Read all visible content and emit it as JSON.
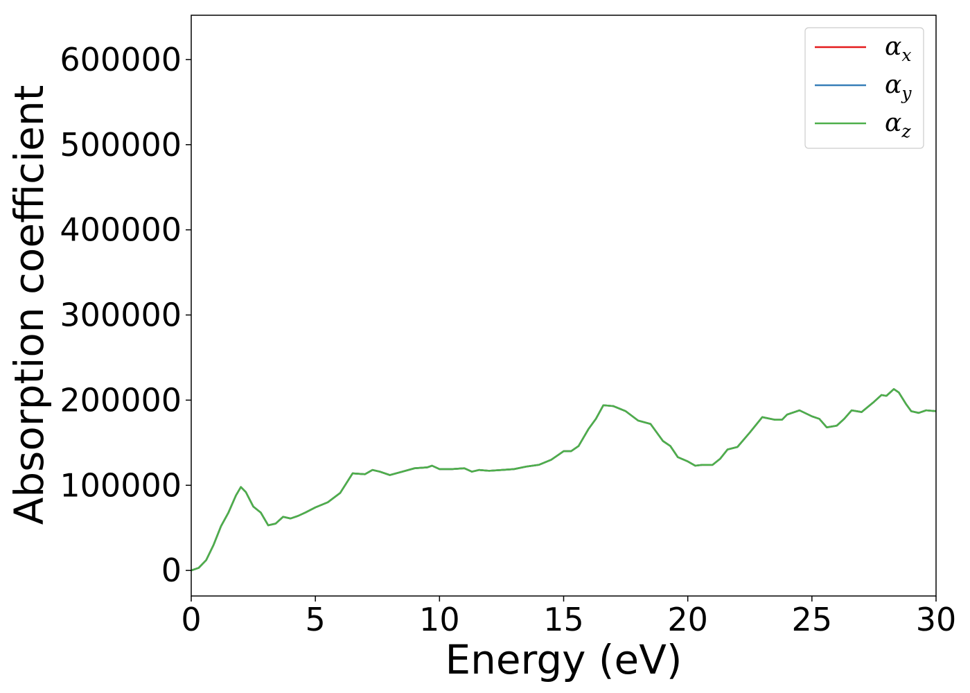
{
  "chart_data": {
    "type": "line",
    "title": "",
    "xlabel": "Energy (eV)",
    "ylabel": "Absorption coefficient",
    "xlim": [
      0,
      30
    ],
    "ylim": [
      -30000,
      652000
    ],
    "xticks": [
      0,
      5,
      10,
      15,
      20,
      25,
      30
    ],
    "yticks": [
      0,
      100000,
      200000,
      300000,
      400000,
      500000,
      600000
    ],
    "grid": false,
    "legend_position": "top-right",
    "x": [
      0,
      0.3,
      0.6,
      0.9,
      1.2,
      1.5,
      1.8,
      2.0,
      2.2,
      2.5,
      2.8,
      3.1,
      3.4,
      3.7,
      4.0,
      4.3,
      4.6,
      5.0,
      5.5,
      6.0,
      6.5,
      7.0,
      7.3,
      7.6,
      8.0,
      8.5,
      9.0,
      9.5,
      9.7,
      10.0,
      10.5,
      11.0,
      11.3,
      11.6,
      12.0,
      12.5,
      13.0,
      13.5,
      14.0,
      14.5,
      14.8,
      15.0,
      15.3,
      15.6,
      16.0,
      16.3,
      16.6,
      17.0,
      17.5,
      18.0,
      18.5,
      19.0,
      19.3,
      19.6,
      20.0,
      20.3,
      20.6,
      21.0,
      21.3,
      21.6,
      22.0,
      22.5,
      23.0,
      23.5,
      23.8,
      24.0,
      24.5,
      25.0,
      25.3,
      25.6,
      26.0,
      26.3,
      26.6,
      27.0,
      27.5,
      27.8,
      28.0,
      28.3,
      28.5,
      28.8,
      29.0,
      29.3,
      29.6,
      30.0
    ],
    "series": [
      {
        "name": "α_x",
        "symbol": "α",
        "subscript": "x",
        "color": "#e41a1c",
        "values": [
          0,
          3000,
          12000,
          30000,
          52000,
          68000,
          88000,
          98000,
          92000,
          75000,
          68000,
          53000,
          55000,
          63000,
          61000,
          64000,
          68000,
          74000,
          80000,
          91000,
          114000,
          113000,
          118000,
          116000,
          112000,
          116000,
          120000,
          121000,
          123000,
          119000,
          119000,
          120000,
          116000,
          118000,
          117000,
          118000,
          119000,
          122000,
          124000,
          130000,
          136000,
          140000,
          140000,
          146000,
          166000,
          178000,
          194000,
          193000,
          187000,
          176000,
          172000,
          152000,
          146000,
          133000,
          128000,
          123000,
          124000,
          124000,
          131000,
          142000,
          145000,
          162000,
          180000,
          177000,
          177000,
          183000,
          188000,
          181000,
          178000,
          168000,
          170000,
          178000,
          188000,
          186000,
          198000,
          206000,
          205000,
          213000,
          209000,
          195000,
          187000,
          185000,
          188000,
          187000
        ]
      },
      {
        "name": "α_y",
        "symbol": "α",
        "subscript": "y",
        "color": "#377eb8",
        "values": [
          0,
          3000,
          12000,
          30000,
          52000,
          68000,
          88000,
          98000,
          92000,
          75000,
          68000,
          53000,
          55000,
          63000,
          61000,
          64000,
          68000,
          74000,
          80000,
          91000,
          114000,
          113000,
          118000,
          116000,
          112000,
          116000,
          120000,
          121000,
          123000,
          119000,
          119000,
          120000,
          116000,
          118000,
          117000,
          118000,
          119000,
          122000,
          124000,
          130000,
          136000,
          140000,
          140000,
          146000,
          166000,
          178000,
          194000,
          193000,
          187000,
          176000,
          172000,
          152000,
          146000,
          133000,
          128000,
          123000,
          124000,
          124000,
          131000,
          142000,
          145000,
          162000,
          180000,
          177000,
          177000,
          183000,
          188000,
          181000,
          178000,
          168000,
          170000,
          178000,
          188000,
          186000,
          198000,
          206000,
          205000,
          213000,
          209000,
          195000,
          187000,
          185000,
          188000,
          187000
        ]
      },
      {
        "name": "α_z",
        "symbol": "α",
        "subscript": "z",
        "color": "#4daf4a",
        "values": [
          0,
          3000,
          12000,
          30000,
          52000,
          68000,
          88000,
          98000,
          92000,
          75000,
          68000,
          53000,
          55000,
          63000,
          61000,
          64000,
          68000,
          74000,
          80000,
          91000,
          114000,
          113000,
          118000,
          116000,
          112000,
          116000,
          120000,
          121000,
          123000,
          119000,
          119000,
          120000,
          116000,
          118000,
          117000,
          118000,
          119000,
          122000,
          124000,
          130000,
          136000,
          140000,
          140000,
          146000,
          166000,
          178000,
          194000,
          193000,
          187000,
          176000,
          172000,
          152000,
          146000,
          133000,
          128000,
          123000,
          124000,
          124000,
          131000,
          142000,
          145000,
          162000,
          180000,
          177000,
          177000,
          183000,
          188000,
          181000,
          178000,
          168000,
          170000,
          178000,
          188000,
          186000,
          198000,
          206000,
          205000,
          213000,
          209000,
          195000,
          187000,
          185000,
          188000,
          187000
        ]
      }
    ]
  }
}
